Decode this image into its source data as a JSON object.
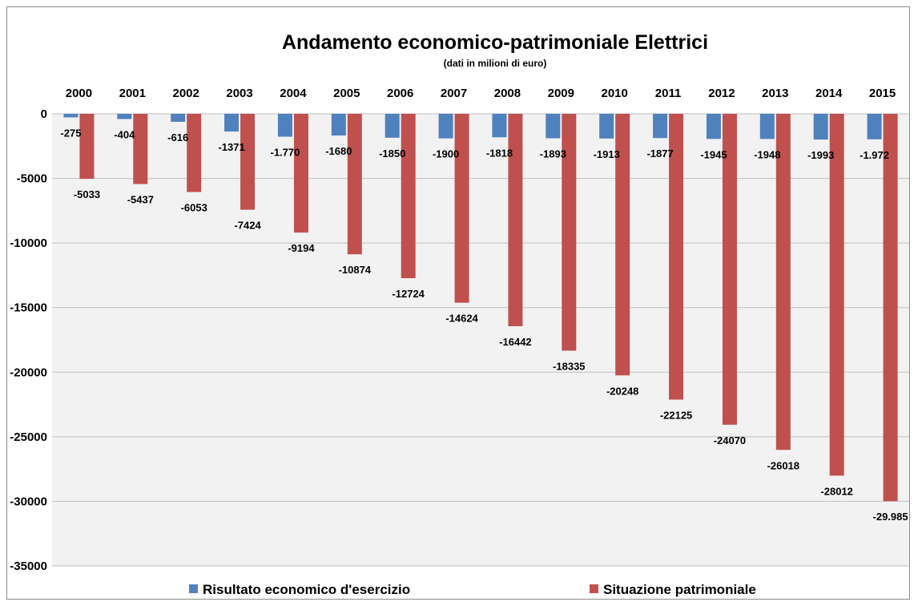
{
  "chart_data": {
    "type": "bar",
    "title": "Andamento economico-patrimoniale Elettrici",
    "subtitle": "(dati in milioni di euro)",
    "categories": [
      "2000",
      "2001",
      "2002",
      "2003",
      "2004",
      "2005",
      "2006",
      "2007",
      "2008",
      "2009",
      "2010",
      "2011",
      "2012",
      "2013",
      "2014",
      "2015"
    ],
    "series": [
      {
        "name": "Risultato economico d'esercizio",
        "color": "#4f81bd",
        "values": [
          -275,
          -404,
          -616,
          -1371,
          -1770,
          -1680,
          -1850,
          -1900,
          -1818,
          -1893,
          -1913,
          -1877,
          -1945,
          -1948,
          -1993,
          -1972
        ],
        "labels": [
          "-275",
          "-404",
          "-616",
          "-1371",
          "-1.770",
          "-1680",
          "-1850",
          "-1900",
          "-1818",
          "-1893",
          "-1913",
          "-1877",
          "-1945",
          "-1948",
          "-1993",
          "-1.972"
        ]
      },
      {
        "name": "Situazione patrimoniale",
        "color": "#c0504d",
        "values": [
          -5033,
          -5437,
          -6053,
          -7424,
          -9194,
          -10874,
          -12724,
          -14624,
          -16442,
          -18335,
          -20248,
          -22125,
          -24070,
          -26018,
          -28012,
          -29985
        ],
        "labels": [
          "-5033",
          "-5437",
          "-6053",
          "-7424",
          "-9194",
          "-10874",
          "-12724",
          "-14624",
          "-16442",
          "-18335",
          "-20248",
          "-22125",
          "-24070",
          "-26018",
          "-28012",
          "-29.985"
        ]
      }
    ],
    "yticks": [
      0,
      -5000,
      -10000,
      -15000,
      -20000,
      -25000,
      -30000,
      -35000
    ],
    "ylim": [
      -35000,
      0
    ],
    "grid": true,
    "legend_position": "bottom",
    "plot_background": "#f2f2f2"
  }
}
